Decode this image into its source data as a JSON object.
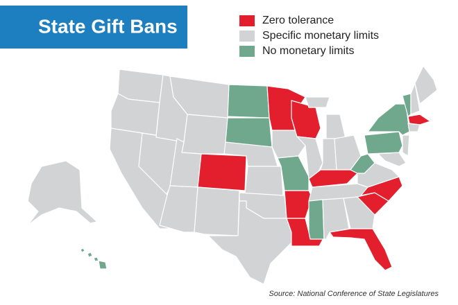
{
  "title": "State Gift Bans",
  "legend": [
    {
      "label": "Zero tolerance",
      "color": "#e31e2d"
    },
    {
      "label": "Specific monetary limits",
      "color": "#d1d3d4"
    },
    {
      "label": "No monetary limits",
      "color": "#6fa88c"
    }
  ],
  "source": "Source: National Conference of State Legislatures"
}
